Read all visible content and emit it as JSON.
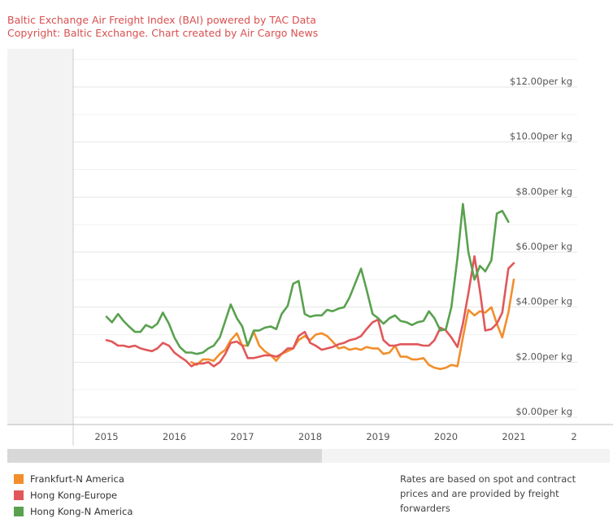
{
  "header": {
    "title": "Baltic Exchange Air Freight Index (BAI) powered by TAC Data",
    "subtitle": "Copyright: Baltic Exchange. Chart created by Air Cargo News"
  },
  "chart_data": {
    "type": "line",
    "title": "Baltic Exchange Air Freight Index (BAI) powered by TAC Data",
    "subtitle": "Copyright: Baltic Exchange. Chart created by Air Cargo News",
    "xlabel": "",
    "ylabel": "",
    "xlim": [
      2014.5,
      2021.9
    ],
    "ylim": [
      0,
      13
    ],
    "y_ticks": [
      0,
      2,
      4,
      6,
      8,
      10,
      12
    ],
    "y_tick_labels": [
      "$0.00per kg",
      "$2.00per kg",
      "$4.00per kg",
      "$6.00per kg",
      "$8.00per kg",
      "$10.00per kg",
      "$12.00per kg"
    ],
    "x_ticks": [
      2015,
      2016,
      2017,
      2018,
      2019,
      2020,
      2021
    ],
    "x_tick_labels": [
      "2015",
      "2016",
      "2017",
      "2018",
      "2019",
      "2020",
      "2021"
    ],
    "x_tick_label_extra": "2",
    "grid": true,
    "legend_position": "bottom-left",
    "series": [
      {
        "name": "Frankfurt-N America",
        "color": "#f28e2b",
        "points": [
          [
            2016.25,
            2.0
          ],
          [
            2016.33,
            1.9
          ],
          [
            2016.42,
            2.1
          ],
          [
            2016.5,
            2.1
          ],
          [
            2016.58,
            2.05
          ],
          [
            2016.67,
            2.3
          ],
          [
            2016.75,
            2.45
          ],
          [
            2016.83,
            2.8
          ],
          [
            2016.92,
            3.05
          ],
          [
            2017.0,
            2.6
          ],
          [
            2017.08,
            2.6
          ],
          [
            2017.17,
            3.1
          ],
          [
            2017.25,
            2.6
          ],
          [
            2017.33,
            2.4
          ],
          [
            2017.42,
            2.25
          ],
          [
            2017.5,
            2.05
          ],
          [
            2017.58,
            2.3
          ],
          [
            2017.67,
            2.4
          ],
          [
            2017.75,
            2.5
          ],
          [
            2017.83,
            2.8
          ],
          [
            2017.92,
            2.95
          ],
          [
            2018.0,
            2.8
          ],
          [
            2018.08,
            3.0
          ],
          [
            2018.17,
            3.05
          ],
          [
            2018.25,
            2.95
          ],
          [
            2018.33,
            2.75
          ],
          [
            2018.42,
            2.5
          ],
          [
            2018.5,
            2.55
          ],
          [
            2018.58,
            2.45
          ],
          [
            2018.67,
            2.5
          ],
          [
            2018.75,
            2.45
          ],
          [
            2018.83,
            2.55
          ],
          [
            2018.92,
            2.5
          ],
          [
            2019.0,
            2.5
          ],
          [
            2019.08,
            2.3
          ],
          [
            2019.17,
            2.35
          ],
          [
            2019.25,
            2.6
          ],
          [
            2019.33,
            2.2
          ],
          [
            2019.42,
            2.2
          ],
          [
            2019.5,
            2.1
          ],
          [
            2019.58,
            2.1
          ],
          [
            2019.67,
            2.15
          ],
          [
            2019.75,
            1.9
          ],
          [
            2019.83,
            1.8
          ],
          [
            2019.92,
            1.75
          ],
          [
            2020.0,
            1.8
          ],
          [
            2020.08,
            1.9
          ],
          [
            2020.17,
            1.85
          ],
          [
            2020.25,
            2.9
          ],
          [
            2020.33,
            3.9
          ],
          [
            2020.42,
            3.7
          ],
          [
            2020.5,
            3.85
          ],
          [
            2020.58,
            3.8
          ],
          [
            2020.67,
            4.0
          ],
          [
            2020.75,
            3.4
          ],
          [
            2020.83,
            2.9
          ],
          [
            2020.92,
            3.8
          ],
          [
            2021.0,
            5.0
          ]
        ]
      },
      {
        "name": "Hong Kong-Europe",
        "color": "#e15759",
        "points": [
          [
            2015.0,
            2.8
          ],
          [
            2015.08,
            2.75
          ],
          [
            2015.17,
            2.6
          ],
          [
            2015.25,
            2.6
          ],
          [
            2015.33,
            2.55
          ],
          [
            2015.42,
            2.6
          ],
          [
            2015.5,
            2.5
          ],
          [
            2015.58,
            2.45
          ],
          [
            2015.67,
            2.4
          ],
          [
            2015.75,
            2.5
          ],
          [
            2015.83,
            2.7
          ],
          [
            2015.92,
            2.6
          ],
          [
            2016.0,
            2.35
          ],
          [
            2016.08,
            2.2
          ],
          [
            2016.17,
            2.05
          ],
          [
            2016.25,
            1.85
          ],
          [
            2016.33,
            1.95
          ],
          [
            2016.42,
            1.95
          ],
          [
            2016.5,
            2.0
          ],
          [
            2016.58,
            1.85
          ],
          [
            2016.67,
            2.0
          ],
          [
            2016.75,
            2.3
          ],
          [
            2016.83,
            2.7
          ],
          [
            2016.92,
            2.75
          ],
          [
            2017.0,
            2.6
          ],
          [
            2017.08,
            2.15
          ],
          [
            2017.17,
            2.15
          ],
          [
            2017.25,
            2.2
          ],
          [
            2017.33,
            2.25
          ],
          [
            2017.42,
            2.25
          ],
          [
            2017.5,
            2.2
          ],
          [
            2017.58,
            2.3
          ],
          [
            2017.67,
            2.5
          ],
          [
            2017.75,
            2.5
          ],
          [
            2017.83,
            2.95
          ],
          [
            2017.92,
            3.1
          ],
          [
            2018.0,
            2.7
          ],
          [
            2018.08,
            2.6
          ],
          [
            2018.17,
            2.45
          ],
          [
            2018.25,
            2.5
          ],
          [
            2018.33,
            2.55
          ],
          [
            2018.42,
            2.65
          ],
          [
            2018.5,
            2.7
          ],
          [
            2018.58,
            2.8
          ],
          [
            2018.67,
            2.85
          ],
          [
            2018.75,
            2.95
          ],
          [
            2018.83,
            3.2
          ],
          [
            2018.92,
            3.45
          ],
          [
            2019.0,
            3.55
          ],
          [
            2019.08,
            2.8
          ],
          [
            2019.17,
            2.6
          ],
          [
            2019.25,
            2.6
          ],
          [
            2019.33,
            2.65
          ],
          [
            2019.42,
            2.65
          ],
          [
            2019.5,
            2.65
          ],
          [
            2019.58,
            2.65
          ],
          [
            2019.67,
            2.6
          ],
          [
            2019.75,
            2.6
          ],
          [
            2019.83,
            2.8
          ],
          [
            2019.92,
            3.25
          ],
          [
            2020.0,
            3.15
          ],
          [
            2020.08,
            2.9
          ],
          [
            2020.17,
            2.55
          ],
          [
            2020.25,
            3.4
          ],
          [
            2020.33,
            4.5
          ],
          [
            2020.42,
            5.85
          ],
          [
            2020.5,
            4.6
          ],
          [
            2020.58,
            3.15
          ],
          [
            2020.67,
            3.2
          ],
          [
            2020.75,
            3.4
          ],
          [
            2020.83,
            3.8
          ],
          [
            2020.92,
            5.4
          ],
          [
            2021.0,
            5.6
          ]
        ]
      },
      {
        "name": "Hong Kong-N America",
        "color": "#59a14f",
        "points": [
          [
            2015.0,
            3.65
          ],
          [
            2015.08,
            3.45
          ],
          [
            2015.17,
            3.75
          ],
          [
            2015.25,
            3.5
          ],
          [
            2015.33,
            3.3
          ],
          [
            2015.42,
            3.1
          ],
          [
            2015.5,
            3.1
          ],
          [
            2015.58,
            3.35
          ],
          [
            2015.67,
            3.25
          ],
          [
            2015.75,
            3.4
          ],
          [
            2015.83,
            3.8
          ],
          [
            2015.92,
            3.4
          ],
          [
            2016.0,
            2.9
          ],
          [
            2016.08,
            2.55
          ],
          [
            2016.17,
            2.35
          ],
          [
            2016.25,
            2.35
          ],
          [
            2016.33,
            2.3
          ],
          [
            2016.42,
            2.35
          ],
          [
            2016.5,
            2.5
          ],
          [
            2016.58,
            2.6
          ],
          [
            2016.67,
            2.9
          ],
          [
            2016.75,
            3.5
          ],
          [
            2016.83,
            4.1
          ],
          [
            2016.92,
            3.6
          ],
          [
            2017.0,
            3.3
          ],
          [
            2017.08,
            2.6
          ],
          [
            2017.17,
            3.15
          ],
          [
            2017.25,
            3.15
          ],
          [
            2017.33,
            3.25
          ],
          [
            2017.42,
            3.3
          ],
          [
            2017.5,
            3.2
          ],
          [
            2017.58,
            3.75
          ],
          [
            2017.67,
            4.05
          ],
          [
            2017.75,
            4.85
          ],
          [
            2017.83,
            4.95
          ],
          [
            2017.92,
            3.75
          ],
          [
            2018.0,
            3.65
          ],
          [
            2018.08,
            3.7
          ],
          [
            2018.17,
            3.7
          ],
          [
            2018.25,
            3.9
          ],
          [
            2018.33,
            3.85
          ],
          [
            2018.42,
            3.95
          ],
          [
            2018.5,
            4.0
          ],
          [
            2018.58,
            4.35
          ],
          [
            2018.67,
            4.9
          ],
          [
            2018.75,
            5.4
          ],
          [
            2018.83,
            4.65
          ],
          [
            2018.92,
            3.75
          ],
          [
            2019.0,
            3.6
          ],
          [
            2019.08,
            3.4
          ],
          [
            2019.17,
            3.6
          ],
          [
            2019.25,
            3.7
          ],
          [
            2019.33,
            3.5
          ],
          [
            2019.42,
            3.45
          ],
          [
            2019.5,
            3.35
          ],
          [
            2019.58,
            3.45
          ],
          [
            2019.67,
            3.5
          ],
          [
            2019.75,
            3.85
          ],
          [
            2019.83,
            3.6
          ],
          [
            2019.92,
            3.15
          ],
          [
            2020.0,
            3.2
          ],
          [
            2020.08,
            4.0
          ],
          [
            2020.17,
            5.8
          ],
          [
            2020.25,
            7.75
          ],
          [
            2020.33,
            6.0
          ],
          [
            2020.42,
            5.0
          ],
          [
            2020.5,
            5.5
          ],
          [
            2020.58,
            5.3
          ],
          [
            2020.67,
            5.7
          ],
          [
            2020.75,
            7.4
          ],
          [
            2020.83,
            7.5
          ],
          [
            2020.92,
            7.1
          ]
        ]
      }
    ]
  },
  "legend": {
    "items": [
      {
        "label": "Frankfurt-N America",
        "color": "#f28e2b"
      },
      {
        "label": "Hong Kong-Europe",
        "color": "#e15759"
      },
      {
        "label": "Hong Kong-N America",
        "color": "#59a14f"
      }
    ]
  },
  "note": "Rates are based on spot and contract prices and are provided by freight forwarders"
}
